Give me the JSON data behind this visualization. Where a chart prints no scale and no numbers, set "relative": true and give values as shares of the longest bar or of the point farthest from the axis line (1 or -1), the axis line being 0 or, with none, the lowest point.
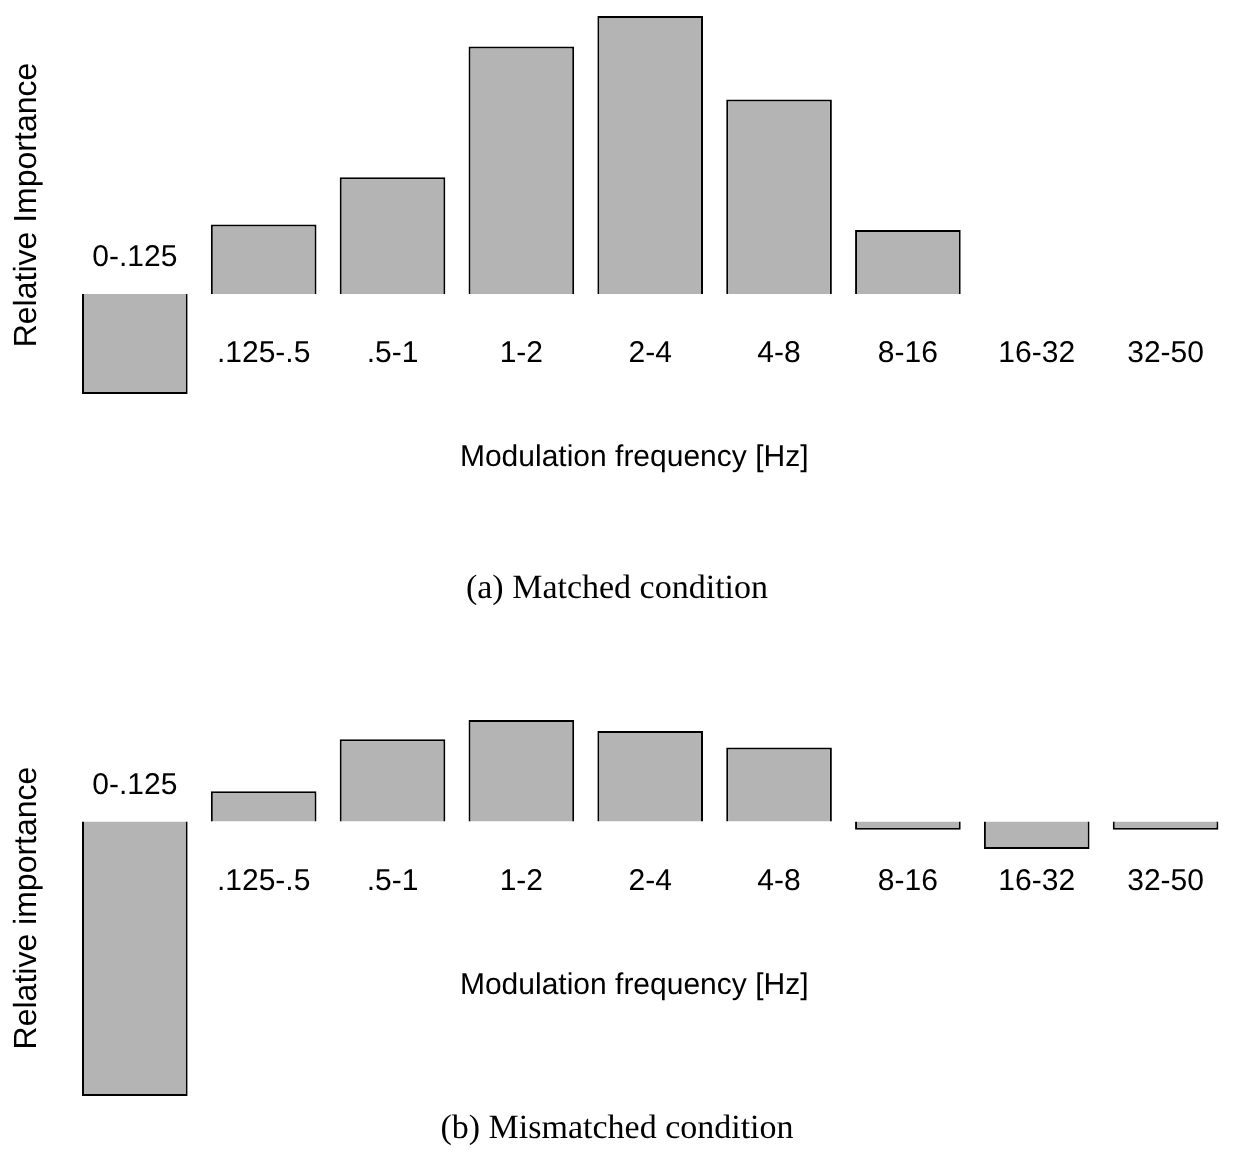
{
  "chart_data": [
    {
      "type": "bar",
      "relative": true,
      "ylabel": "Relative Importance",
      "xlabel": "Modulation frequency [Hz]",
      "annotations": [
        "(a) Matched condition"
      ],
      "color": "#b4b4b4",
      "categories": [
        "0-.125",
        ".125-.5",
        ".5-1",
        "1-2",
        "2-4",
        "4-8",
        "8-16",
        "16-32",
        "32-50"
      ],
      "values": [
        -0.36,
        0.25,
        0.42,
        0.89,
        1,
        0.7,
        0.23,
        0,
        0
      ]
    },
    {
      "type": "bar",
      "relative": true,
      "ylabel": "Relative importance",
      "xlabel": "Modulation frequency [Hz]",
      "annotations": [
        "(b) Mismatched condition"
      ],
      "color": "#b4b4b4",
      "categories": [
        "0-.125",
        ".125-.5",
        ".5-1",
        "1-2",
        "2-4",
        "4-8",
        "8-16",
        "16-32",
        "32-50"
      ],
      "values": [
        -1,
        0.11,
        0.3,
        0.37,
        0.33,
        0.27,
        -0.03,
        -0.1,
        -0.03
      ]
    }
  ]
}
